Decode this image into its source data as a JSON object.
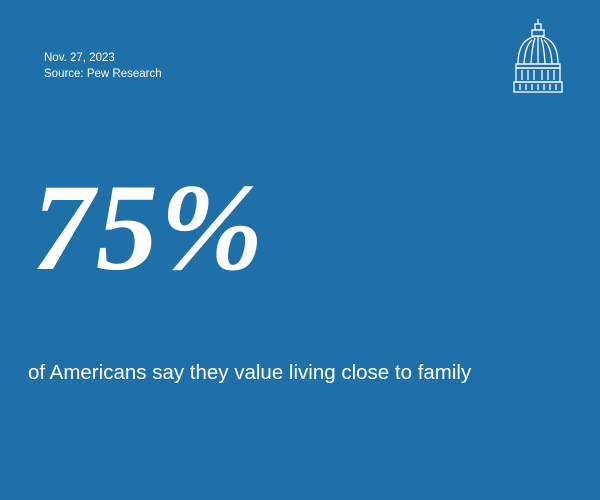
{
  "header": {
    "date": "Nov. 27, 2023",
    "source": "Source: Pew Research"
  },
  "stat": {
    "figure": "75%",
    "caption": "of Americans say they value living close to family"
  }
}
